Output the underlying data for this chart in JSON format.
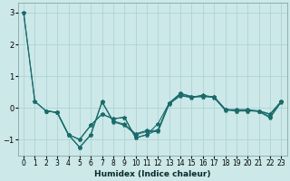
{
  "title": "",
  "xlabel": "Humidex (Indice chaleur)",
  "ylabel": "",
  "bg_color": "#cce8e8",
  "grid_color": "#aacfcf",
  "line_color": "#1a6b6b",
  "xlim": [
    -0.5,
    23.5
  ],
  "ylim": [
    -1.5,
    3.3
  ],
  "yticks": [
    -1,
    0,
    1,
    2,
    3
  ],
  "xticks": [
    0,
    1,
    2,
    3,
    4,
    5,
    6,
    7,
    8,
    9,
    10,
    11,
    12,
    13,
    14,
    15,
    16,
    17,
    18,
    19,
    20,
    21,
    22,
    23
  ],
  "lines": [
    {
      "x": [
        0,
        1,
        2,
        3,
        4,
        5,
        6,
        7,
        8,
        9,
        10,
        11,
        12,
        13,
        14,
        15,
        16,
        17,
        18,
        19,
        20,
        21,
        22,
        23
      ],
      "y": [
        3.0,
        0.2,
        -0.1,
        -0.15,
        -0.85,
        -1.0,
        -0.55,
        -0.2,
        -0.35,
        -0.3,
        -0.95,
        -0.85,
        -0.7,
        0.15,
        0.45,
        0.35,
        0.35,
        0.35,
        -0.05,
        -0.1,
        -0.1,
        -0.1,
        -0.2,
        0.2
      ]
    },
    {
      "x": [
        2,
        3,
        4,
        5,
        6,
        7,
        8,
        9,
        10,
        11,
        12,
        13,
        14,
        15,
        16,
        17,
        18,
        19,
        20,
        21,
        22,
        23
      ],
      "y": [
        -0.1,
        -0.15,
        -0.85,
        -1.25,
        -0.85,
        0.2,
        -0.45,
        -0.55,
        -0.85,
        -0.75,
        -0.75,
        0.12,
        0.38,
        0.32,
        0.38,
        0.32,
        -0.08,
        -0.08,
        -0.08,
        -0.12,
        -0.32,
        0.18
      ]
    },
    {
      "x": [
        0,
        1,
        2,
        3,
        4,
        5,
        6,
        7,
        8,
        9,
        10,
        11,
        12,
        13,
        14,
        15,
        16,
        17,
        18,
        19,
        20,
        21,
        22,
        23
      ],
      "y": [
        3.0,
        0.2,
        -0.1,
        -0.15,
        -0.85,
        -1.0,
        -0.55,
        -0.2,
        -0.35,
        -0.3,
        -0.95,
        -0.85,
        -0.5,
        0.15,
        0.45,
        0.35,
        0.35,
        0.35,
        -0.05,
        -0.1,
        -0.1,
        -0.1,
        -0.2,
        0.2
      ]
    },
    {
      "x": [
        2,
        3,
        4,
        5,
        6,
        7,
        8,
        9,
        10,
        11,
        12,
        13,
        14,
        15,
        16,
        17,
        18,
        19,
        20,
        21,
        22,
        23
      ],
      "y": [
        -0.1,
        -0.15,
        -0.85,
        -1.25,
        -0.85,
        0.18,
        -0.42,
        -0.52,
        -0.82,
        -0.72,
        -0.72,
        0.14,
        0.4,
        0.33,
        0.4,
        0.33,
        -0.06,
        -0.06,
        -0.06,
        -0.1,
        -0.28,
        0.2
      ]
    }
  ],
  "marker": "*",
  "markersize": 3,
  "linewidth": 0.8,
  "tick_fontsize": 5.5,
  "xlabel_fontsize": 6.5
}
